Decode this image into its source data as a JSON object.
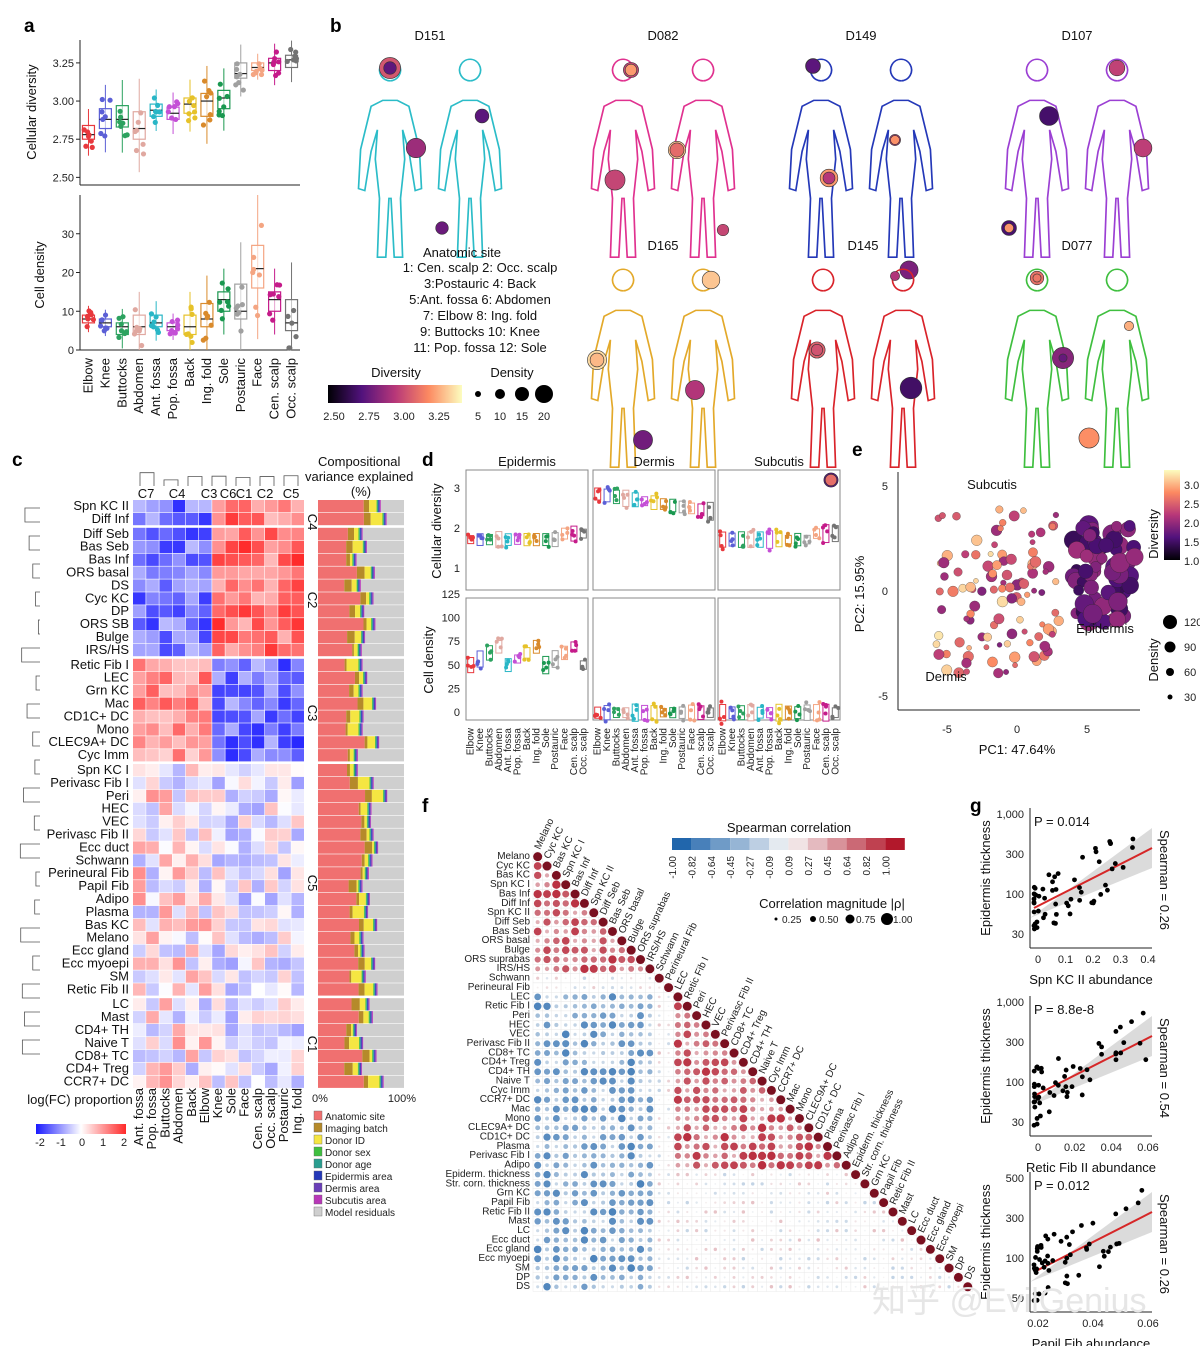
{
  "panel_letters": [
    "a",
    "b",
    "c",
    "d",
    "e",
    "f",
    "g"
  ],
  "watermark": "知乎 @EvilGenius",
  "sites": [
    "Elbow",
    "Knee",
    "Buttocks",
    "Abdomen",
    "Ant. fossa",
    "Pop. fossa",
    "Back",
    "Ing. fold",
    "Sole",
    "Postauric",
    "Face",
    "Cen. scalp",
    "Occ. scalp"
  ],
  "site_colors": [
    "#e8383d",
    "#5b5fd6",
    "#2ca25f",
    "#e0a8a0",
    "#29b6c6",
    "#c44fd6",
    "#e6c229",
    "#d98a2b",
    "#1a9850",
    "#a0a0a0",
    "#f4a582",
    "#c51b8a",
    "#737373"
  ],
  "chart_data": [
    {
      "type": "box",
      "panel": "a",
      "categories": [
        "Elbow",
        "Knee",
        "Buttocks",
        "Abdomen",
        "Ant. fossa",
        "Pop. fossa",
        "Back",
        "Ing. fold",
        "Sole",
        "Postauric",
        "Face",
        "Cen. scalp",
        "Occ. scalp"
      ],
      "ylabel_top": "Cellular diversity",
      "ylim_top": [
        2.45,
        3.4
      ],
      "yticks_top": [
        "2.50",
        "2.75",
        "3.00",
        "3.25"
      ],
      "median_top": [
        2.78,
        2.88,
        2.88,
        2.82,
        2.94,
        2.92,
        2.98,
        3.0,
        3.02,
        3.18,
        3.22,
        3.25,
        3.27
      ],
      "q1_top": [
        2.75,
        2.82,
        2.83,
        2.75,
        2.9,
        2.88,
        2.92,
        2.9,
        2.95,
        3.15,
        3.2,
        3.2,
        3.22
      ],
      "q3_top": [
        2.84,
        2.95,
        2.97,
        2.93,
        2.98,
        2.96,
        3.02,
        3.05,
        3.07,
        3.25,
        3.25,
        3.28,
        3.3
      ],
      "ylabel_bottom": "Cell density",
      "ylim_bottom": [
        0,
        40
      ],
      "yticks_bottom": [
        "0",
        "10",
        "20",
        "30"
      ],
      "median_bottom": [
        8,
        7,
        6,
        6,
        7,
        6,
        6,
        8,
        13,
        10,
        21,
        13,
        7
      ],
      "q1_bottom": [
        7,
        6,
        4,
        4,
        6,
        5,
        4,
        6,
        10,
        8,
        16,
        10,
        5
      ],
      "q3_bottom": [
        9,
        8,
        7,
        9,
        9,
        7,
        9,
        12,
        15,
        17,
        27,
        15,
        13
      ]
    },
    {
      "type": "body-map",
      "panel": "b",
      "donors": [
        "D151",
        "D082",
        "D149",
        "D107",
        "D165",
        "D145",
        "D077"
      ],
      "legend_title": "Anatomic site",
      "site_legend": [
        "1: Cen. scalp  2: Occ. scalp",
        "3:Postauric  4: Back",
        "5:Ant. fossa  6: Abdomen",
        "7: Elbow  8: Ing. fold",
        "9: Buttocks  10: Knee",
        "11: Pop. fossa  12: Sole"
      ],
      "numbers": [
        "1",
        "2",
        "3",
        "4",
        "5",
        "6",
        "7",
        "8",
        "9",
        "10",
        "11",
        "12"
      ],
      "diversity_label": "Diversity",
      "diversity_ticks": [
        "2.50",
        "2.75",
        "3.00",
        "3.25"
      ],
      "density_label": "Density",
      "density_ticks": [
        "5",
        "10",
        "15",
        "20"
      ],
      "donor_colors": [
        "#2bbcc8",
        "#e0318f",
        "#2438b8",
        "#9b3fd3",
        "#e3a92a",
        "#d9232a",
        "#3fbf3f"
      ]
    },
    {
      "type": "heatmap",
      "panel": "c",
      "columns": [
        "Ant. fossa",
        "Pop. fossa",
        "Buttocks",
        "Abdomen",
        "Back",
        "Elbow",
        "Knee",
        "Sole",
        "Face",
        "Cen. scalp",
        "Occ. scalp",
        "Postauric",
        "Ing. fold"
      ],
      "column_clusters": [
        "C7",
        "C4",
        "C3",
        "C6",
        "C1",
        "C2",
        "C5"
      ],
      "row_clusters": [
        "C4",
        "C2",
        "C3",
        "C5",
        "C1"
      ],
      "rows": [
        "Spn KC II",
        "Diff Inf",
        "Diff Seb",
        "Bas Seb",
        "Bas Inf",
        "ORS basal",
        "DS",
        "Cyc KC",
        "DP",
        "ORS SB",
        "Bulge",
        "IRS/HS",
        "Retic Fib I",
        "LEC",
        "Grn KC",
        "Mac",
        "CD1C+ DC",
        "Mono",
        "CLEC9A+ DC",
        "Cyc Imm",
        "Spn KC I",
        "Perivasc Fib I",
        "Peri",
        "HEC",
        "VEC",
        "Perivasc Fib II",
        "Ecc duct",
        "Schwann",
        "Perineural Fib",
        "Papil Fib",
        "Adipo",
        "Plasma",
        "Bas KC",
        "Melano",
        "Ecc gland",
        "Ecc myoepi",
        "SM",
        "Retic Fib II",
        "LC",
        "Mast",
        "CD4+ TH",
        "Naive T",
        "CD8+ TC",
        "CD4+ Treg",
        "CCR7+ DC"
      ],
      "legend_title": "log(FC) proportion",
      "legend_ticks": [
        "-2",
        "-1",
        "0",
        "1",
        "2"
      ],
      "variance_title": "Compositional variance explained (%)",
      "variance_ticks": [
        "0%",
        "100%"
      ],
      "variance_components": [
        "Anatomic site",
        "Imaging batch",
        "Donor ID",
        "Donor sex",
        "Donor age",
        "Epidermis area",
        "Dermis area",
        "Subcutis area",
        "Model residuals"
      ],
      "variance_colors": [
        "#f07070",
        "#b58a2a",
        "#f5e642",
        "#3fbf3f",
        "#2a9d8f",
        "#2438b8",
        "#6a3fb8",
        "#b838b8",
        "#cfcfcf"
      ]
    },
    {
      "type": "box",
      "panel": "d",
      "facets": [
        "Epidermis",
        "Dermis",
        "Subcutis"
      ],
      "ylabel_top": "Cellular diversity",
      "yticks_top": [
        "1",
        "2",
        "3"
      ],
      "ylabel_bottom": "Cell density",
      "yticks_bottom": [
        "0",
        "25",
        "50",
        "75",
        "100",
        "125"
      ],
      "categories": [
        "Elbow",
        "Knee",
        "Buttocks",
        "Abdomen",
        "Ant. fossa",
        "Pop. fossa",
        "Back",
        "Ing. fold",
        "Sole",
        "Postauric",
        "Face",
        "Cen. scalp",
        "Occ. scalp"
      ]
    },
    {
      "type": "scatter",
      "panel": "e",
      "xlabel": "PC1: 47.64%",
      "ylabel": "PC2: 15.95%",
      "xticks": [
        "-5",
        "0",
        "5"
      ],
      "yticks": [
        "5",
        "0",
        "-5"
      ],
      "groups": [
        "Subcutis",
        "Epidermis",
        "Dermis"
      ],
      "diversity_label": "Diversity",
      "diversity_ticks": [
        "3.0",
        "2.5",
        "2.0",
        "1.5",
        "1.0"
      ],
      "density_label": "Density",
      "density_ticks": [
        "120",
        "90",
        "60",
        "30"
      ]
    },
    {
      "type": "correlation-matrix",
      "panel": "f",
      "variables": [
        "Melano",
        "Cyc KC",
        "Bas KC",
        "Spn KC I",
        "Bas Inf",
        "Diff Inf",
        "Spn KC II",
        "Diff Seb",
        "Bas Seb",
        "ORS basal",
        "Bulge",
        "ORS suprabas",
        "IRS/HS",
        "Schwann",
        "Perineural Fib",
        "LEC",
        "Retic Fib I",
        "Peri",
        "HEC",
        "VEC",
        "Perivasc Fib II",
        "CD8+ TC",
        "CD4+ Treg",
        "CD4+ TH",
        "Naive T",
        "Cyc Imm",
        "CCR7+ DC",
        "Mac",
        "Mono",
        "CLEC9A+ DC",
        "CD1C+ DC",
        "Plasma",
        "Perivasc Fib I",
        "Adipo",
        "Epiderm. thickness",
        "Str. corn. thickness",
        "Grn KC",
        "Papil Fib",
        "Retic Fib II",
        "Mast",
        "LC",
        "Ecc duct",
        "Ecc gland",
        "Ecc myoepi",
        "SM",
        "DP",
        "DS"
      ],
      "color_title": "Spearman correlation",
      "color_ticks": [
        "-1.00",
        "-0.82",
        "-0.64",
        "-0.45",
        "-0.27",
        "-0.09",
        "0.09",
        "0.27",
        "0.45",
        "0.64",
        "0.82",
        "1.00"
      ],
      "size_title": "Correlation magnitude |ρ|",
      "size_ticks": [
        "0.25",
        "0.50",
        "0.75",
        "1.00"
      ]
    },
    {
      "type": "scatter",
      "panel": "g",
      "ylabel": "Epidermis thickness",
      "plots": [
        {
          "xlabel": "Spn KC II abundance",
          "p": "P = 0.014",
          "spearman": "Spearman = 0.26",
          "xticks": [
            "0",
            "0.1",
            "0.2",
            "0.3",
            "0.4"
          ],
          "yticks": [
            "30",
            "100",
            "300",
            "1,000"
          ],
          "xlim": [
            0,
            0.42
          ]
        },
        {
          "xlabel": "Retic Fib II abundance",
          "p": "P = 8.8e-8",
          "spearman": "Spearman = 0.54",
          "xticks": [
            "0",
            "0.02",
            "0.04",
            "0.06"
          ],
          "yticks": [
            "30",
            "100",
            "300",
            "1,000"
          ],
          "xlim": [
            0,
            0.062
          ]
        },
        {
          "xlabel": "Papil Fib abundance",
          "p": "P = 0.012",
          "spearman": "Spearman = 0.26",
          "xticks": [
            "0.02",
            "0.04",
            "0.06"
          ],
          "yticks": [
            "50",
            "100",
            "300",
            "500"
          ],
          "xlim": [
            0,
            0.07
          ]
        }
      ]
    }
  ]
}
